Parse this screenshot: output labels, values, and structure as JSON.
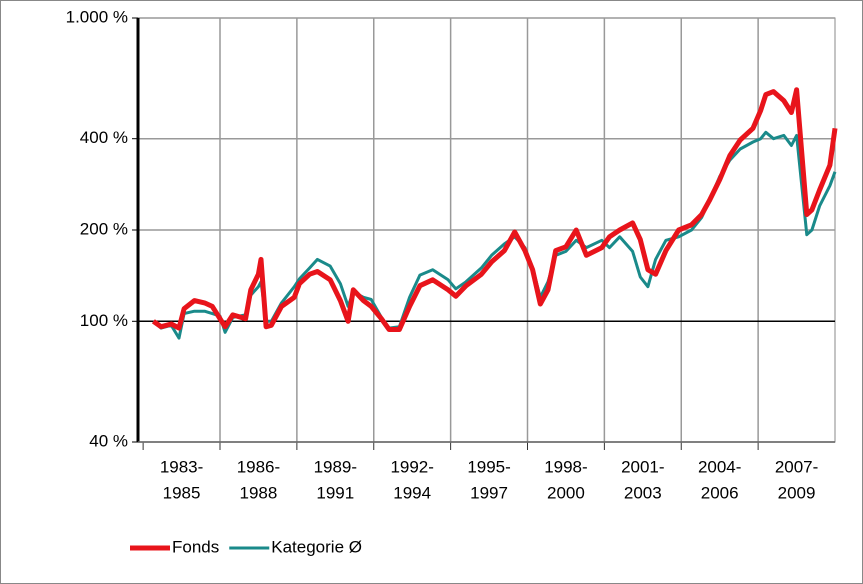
{
  "chart_data": {
    "type": "line",
    "x_labels": [
      [
        "1983-",
        "1985"
      ],
      [
        "1986-",
        "1988"
      ],
      [
        "1989-",
        "1991"
      ],
      [
        "1992-",
        "1994"
      ],
      [
        "1995-",
        "1997"
      ],
      [
        "1998-",
        "2000"
      ],
      [
        "2001-",
        "2003"
      ],
      [
        "2004-",
        "2006"
      ],
      [
        "2007-",
        "2009"
      ]
    ],
    "x": [
      1983.4,
      1983.7,
      1984.1,
      1984.4,
      1984.6,
      1985.0,
      1985.4,
      1985.7,
      1986.0,
      1986.2,
      1986.5,
      1987.0,
      1987.2,
      1987.5,
      1987.6,
      1987.8,
      1988.0,
      1988.4,
      1988.9,
      1989.1,
      1989.5,
      1989.8,
      1990.3,
      1990.7,
      1991.0,
      1991.2,
      1991.6,
      1991.9,
      1992.3,
      1992.6,
      1993.0,
      1993.4,
      1993.8,
      1994.3,
      1994.9,
      1995.2,
      1995.6,
      1996.2,
      1996.6,
      1997.1,
      1997.5,
      1997.9,
      1998.2,
      1998.5,
      1998.8,
      1999.1,
      1999.5,
      1999.9,
      2000.3,
      2000.9,
      2001.2,
      2001.6,
      2002.1,
      2002.4,
      2002.7,
      2003.0,
      2003.4,
      2003.9,
      2004.4,
      2004.8,
      2005.1,
      2005.5,
      2005.9,
      2006.3,
      2006.8,
      2007.1,
      2007.3,
      2007.6,
      2008.0,
      2008.3,
      2008.5,
      2008.9,
      2009.1,
      2009.4,
      2009.8,
      2010.0
    ],
    "series": [
      {
        "name": "Fonds",
        "color": "#e8141b",
        "values": [
          100,
          96,
          98,
          95,
          110,
          117,
          115,
          112,
          102,
          96,
          105,
          102,
          127,
          143,
          160,
          96,
          97,
          112,
          120,
          133,
          143,
          146,
          137,
          117,
          100,
          127,
          117,
          112,
          102,
          94,
          94,
          112,
          131,
          137,
          127,
          121,
          131,
          143,
          157,
          171,
          197,
          171,
          148,
          114,
          127,
          171,
          176,
          200,
          165,
          175,
          190,
          200,
          211,
          186,
          148,
          143,
          171,
          200,
          208,
          225,
          250,
          293,
          352,
          396,
          433,
          496,
          559,
          572,
          534,
          488,
          580,
          225,
          233,
          271,
          327,
          433
        ]
      },
      {
        "name": "Kategorie Ø",
        "color": "#1a8a8a",
        "values": [
          100,
          95,
          97,
          88,
          106,
          108,
          108,
          106,
          104,
          92,
          103,
          105,
          122,
          130,
          135,
          100,
          100,
          115,
          130,
          138,
          150,
          160,
          152,
          133,
          112,
          125,
          120,
          118,
          103,
          95,
          96,
          120,
          142,
          148,
          137,
          128,
          135,
          150,
          165,
          180,
          190,
          175,
          150,
          120,
          135,
          165,
          170,
          185,
          175,
          185,
          175,
          190,
          170,
          140,
          130,
          160,
          185,
          190,
          200,
          220,
          250,
          300,
          340,
          370,
          390,
          400,
          420,
          400,
          410,
          380,
          410,
          193,
          200,
          240,
          280,
          311
        ]
      }
    ],
    "xlim": [
      1982.8,
      2010.0
    ],
    "xticks": [
      1983,
      1986,
      1989,
      1992,
      1995,
      1998,
      2001,
      2004,
      2007
    ],
    "ylim": [
      40,
      1000
    ],
    "yticks": [
      {
        "value": 40,
        "label": "40 %"
      },
      {
        "value": 100,
        "label": "100 %"
      },
      {
        "value": 200,
        "label": "200 %"
      },
      {
        "value": 400,
        "label": "400 %"
      },
      {
        "value": 1000,
        "label": "1.000 %"
      }
    ],
    "log_scale": true,
    "grid": true,
    "reference_line": 100,
    "legend": "bottom"
  }
}
